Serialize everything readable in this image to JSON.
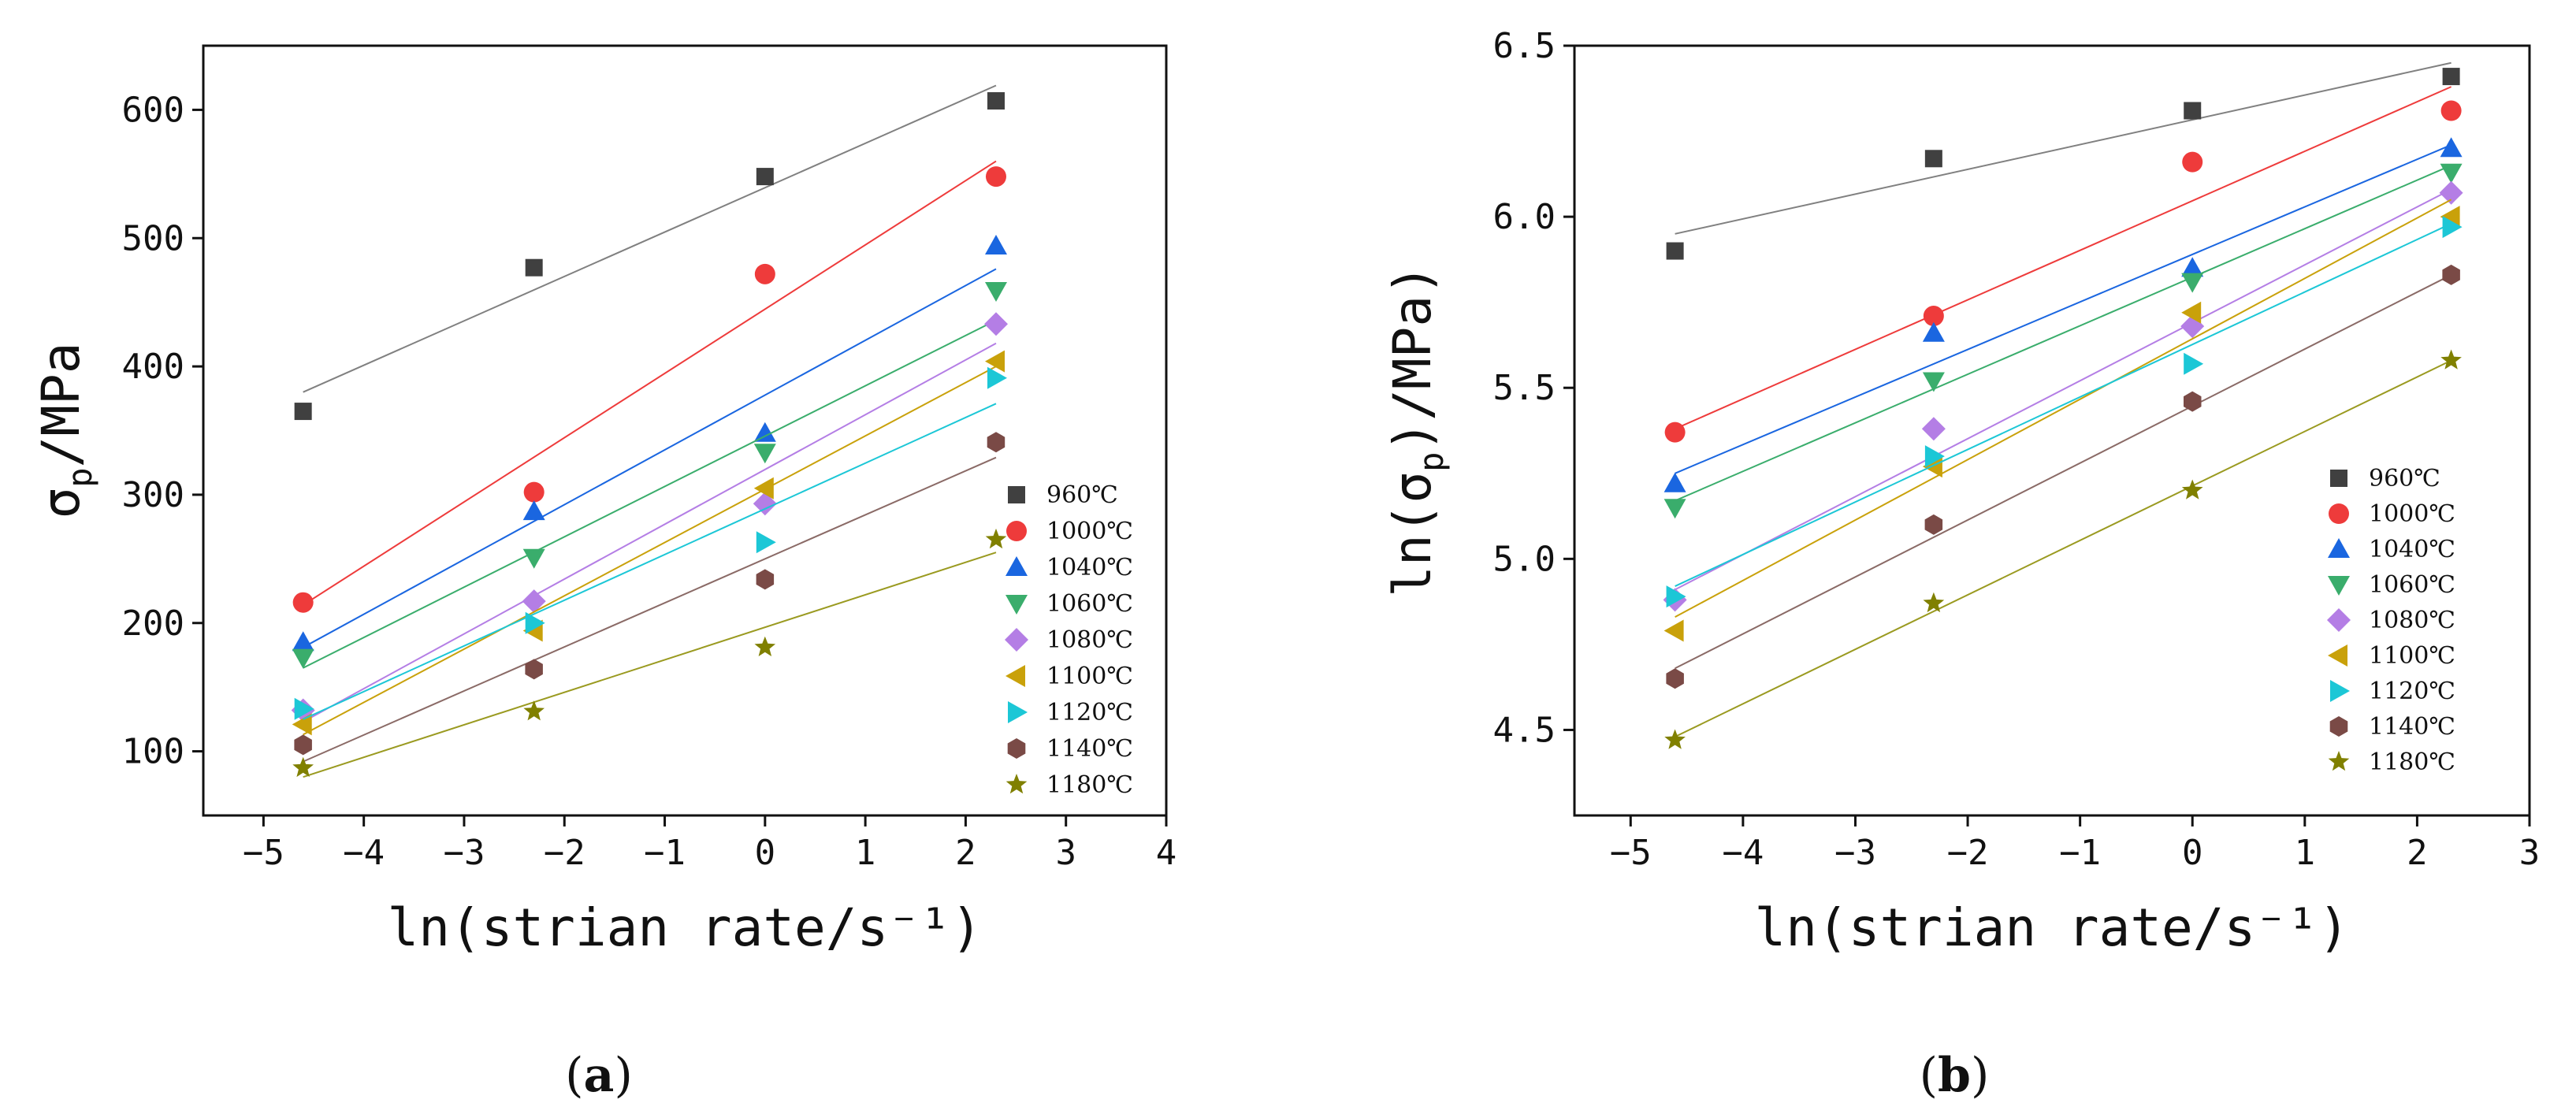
{
  "figure": {
    "panel_labels": [
      "(a)",
      "(b)"
    ]
  },
  "legend": {
    "labels": [
      "960℃",
      "1000℃",
      "1040℃",
      "1060℃",
      "1080℃",
      "1100℃",
      "1120℃",
      "1140℃",
      "1180℃"
    ]
  },
  "series_style": [
    {
      "name": "960℃",
      "marker": "square",
      "color": "#404040",
      "line": "#808080"
    },
    {
      "name": "1000℃",
      "marker": "circle",
      "color": "#ee3b3b",
      "line": "#ee3b3b"
    },
    {
      "name": "1040℃",
      "marker": "triangle-up",
      "color": "#1a66e0",
      "line": "#1a66e0"
    },
    {
      "name": "1060℃",
      "marker": "triangle-down",
      "color": "#3aad6c",
      "line": "#3aad6c"
    },
    {
      "name": "1080℃",
      "marker": "diamond",
      "color": "#b47ee5",
      "line": "#b47ee5"
    },
    {
      "name": "1100℃",
      "marker": "triangle-left",
      "color": "#c9a10a",
      "line": "#c9a10a"
    },
    {
      "name": "1120℃",
      "marker": "triangle-right",
      "color": "#1cc7d6",
      "line": "#1cc7d6"
    },
    {
      "name": "1140℃",
      "marker": "hexagon",
      "color": "#7a4a46",
      "line": "#8a6a66"
    },
    {
      "name": "1180℃",
      "marker": "star",
      "color": "#808000",
      "line": "#9a9a20"
    }
  ],
  "chart_data": [
    {
      "type": "scatter",
      "panel": "(a)",
      "title": "",
      "xlabel": "ln(strian rate/s⁻¹)",
      "ylabel_main": "σ",
      "ylabel_sub": "p",
      "ylabel_rest": "/MPa",
      "xlim": [
        -5.6,
        4
      ],
      "ylim": [
        50,
        650
      ],
      "xticks": [
        -5,
        -4,
        -3,
        -2,
        -1,
        0,
        1,
        2,
        3,
        4
      ],
      "xtick_labels": [
        "−5",
        "−4",
        "−3",
        "−2",
        "−1",
        "0",
        "1",
        "2",
        "3",
        "4"
      ],
      "yticks": [
        100,
        200,
        300,
        400,
        500,
        600
      ],
      "ytick_labels": [
        "100",
        "200",
        "300",
        "400",
        "500",
        "600"
      ],
      "legend_position": "bottom-right",
      "x": [
        -4.605,
        -2.303,
        0,
        2.303
      ],
      "series": [
        {
          "name": "960℃",
          "values": [
            365,
            477,
            548,
            607
          ],
          "fit": [
            [
              -4.605,
              380
            ],
            [
              2.303,
              619
            ]
          ]
        },
        {
          "name": "1000℃",
          "values": [
            216,
            302,
            472,
            548
          ],
          "fit": [
            [
              -4.605,
              214
            ],
            [
              2.303,
              560
            ]
          ]
        },
        {
          "name": "1040℃",
          "values": [
            185,
            287,
            348,
            494
          ],
          "fit": [
            [
              -4.605,
              181
            ],
            [
              2.303,
              476
            ]
          ]
        },
        {
          "name": "1060℃",
          "values": [
            173,
            251,
            333,
            459
          ],
          "fit": [
            [
              -4.605,
              165
            ],
            [
              2.303,
              436
            ]
          ]
        },
        {
          "name": "1080℃",
          "values": [
            132,
            217,
            293,
            433
          ],
          "fit": [
            [
              -4.605,
              123
            ],
            [
              2.303,
              418
            ]
          ]
        },
        {
          "name": "1100℃",
          "values": [
            121,
            194,
            305,
            404
          ],
          "fit": [
            [
              -4.605,
              113
            ],
            [
              2.303,
              400
            ]
          ]
        },
        {
          "name": "1120℃",
          "values": [
            133,
            200,
            263,
            391
          ],
          "fit": [
            [
              -4.605,
              125
            ],
            [
              2.303,
              371
            ]
          ]
        },
        {
          "name": "1140℃",
          "values": [
            105,
            164,
            234,
            341
          ],
          "fit": [
            [
              -4.605,
              92
            ],
            [
              2.303,
              329
            ]
          ]
        },
        {
          "name": "1180℃",
          "values": [
            87,
            131,
            181,
            265
          ],
          "fit": [
            [
              -4.605,
              80
            ],
            [
              2.303,
              255
            ]
          ]
        }
      ]
    },
    {
      "type": "scatter",
      "panel": "(b)",
      "title": "",
      "xlabel": "ln(strian rate/s⁻¹)",
      "ylabel_main": "ln(σ",
      "ylabel_sub": "p",
      "ylabel_rest": ")/MPa)",
      "xlim": [
        -5.5,
        3
      ],
      "ylim": [
        4.25,
        6.5
      ],
      "xticks": [
        -5,
        -4,
        -3,
        -2,
        -1,
        0,
        1,
        2,
        3
      ],
      "xtick_labels": [
        "−5",
        "−4",
        "−3",
        "−2",
        "−1",
        "0",
        "1",
        "2",
        "3"
      ],
      "yticks": [
        4.5,
        5.0,
        5.5,
        6.0,
        6.5
      ],
      "ytick_labels": [
        "4.5",
        "5.0",
        "5.5",
        "6.0",
        "6.5"
      ],
      "legend_position": "bottom-right",
      "x": [
        -4.605,
        -2.303,
        0,
        2.303
      ],
      "series": [
        {
          "name": "960℃",
          "values": [
            5.9,
            6.17,
            6.31,
            6.41
          ],
          "fit": [
            [
              -4.605,
              5.95
            ],
            [
              2.303,
              6.45
            ]
          ]
        },
        {
          "name": "1000℃",
          "values": [
            5.37,
            5.71,
            6.16,
            6.31
          ],
          "fit": [
            [
              -4.605,
              5.38
            ],
            [
              2.303,
              6.38
            ]
          ]
        },
        {
          "name": "1040℃",
          "values": [
            5.22,
            5.66,
            5.85,
            6.2
          ],
          "fit": [
            [
              -4.605,
              5.25
            ],
            [
              2.303,
              6.21
            ]
          ]
        },
        {
          "name": "1060℃",
          "values": [
            5.15,
            5.52,
            5.81,
            6.13
          ],
          "fit": [
            [
              -4.605,
              5.17
            ],
            [
              2.303,
              6.15
            ]
          ]
        },
        {
          "name": "1080℃",
          "values": [
            4.88,
            5.38,
            5.68,
            6.07
          ],
          "fit": [
            [
              -4.605,
              4.91
            ],
            [
              2.303,
              6.08
            ]
          ]
        },
        {
          "name": "1100℃",
          "values": [
            4.79,
            5.27,
            5.72,
            6.0
          ],
          "fit": [
            [
              -4.605,
              4.83
            ],
            [
              2.303,
              6.05
            ]
          ]
        },
        {
          "name": "1120℃",
          "values": [
            4.89,
            5.3,
            5.57,
            5.97
          ],
          "fit": [
            [
              -4.605,
              4.92
            ],
            [
              2.303,
              5.98
            ]
          ]
        },
        {
          "name": "1140℃",
          "values": [
            4.65,
            5.1,
            5.46,
            5.83
          ],
          "fit": [
            [
              -4.605,
              4.68
            ],
            [
              2.303,
              5.83
            ]
          ]
        },
        {
          "name": "1180℃",
          "values": [
            4.47,
            4.87,
            5.2,
            5.58
          ],
          "fit": [
            [
              -4.605,
              4.48
            ],
            [
              2.303,
              5.58
            ]
          ]
        }
      ]
    }
  ]
}
